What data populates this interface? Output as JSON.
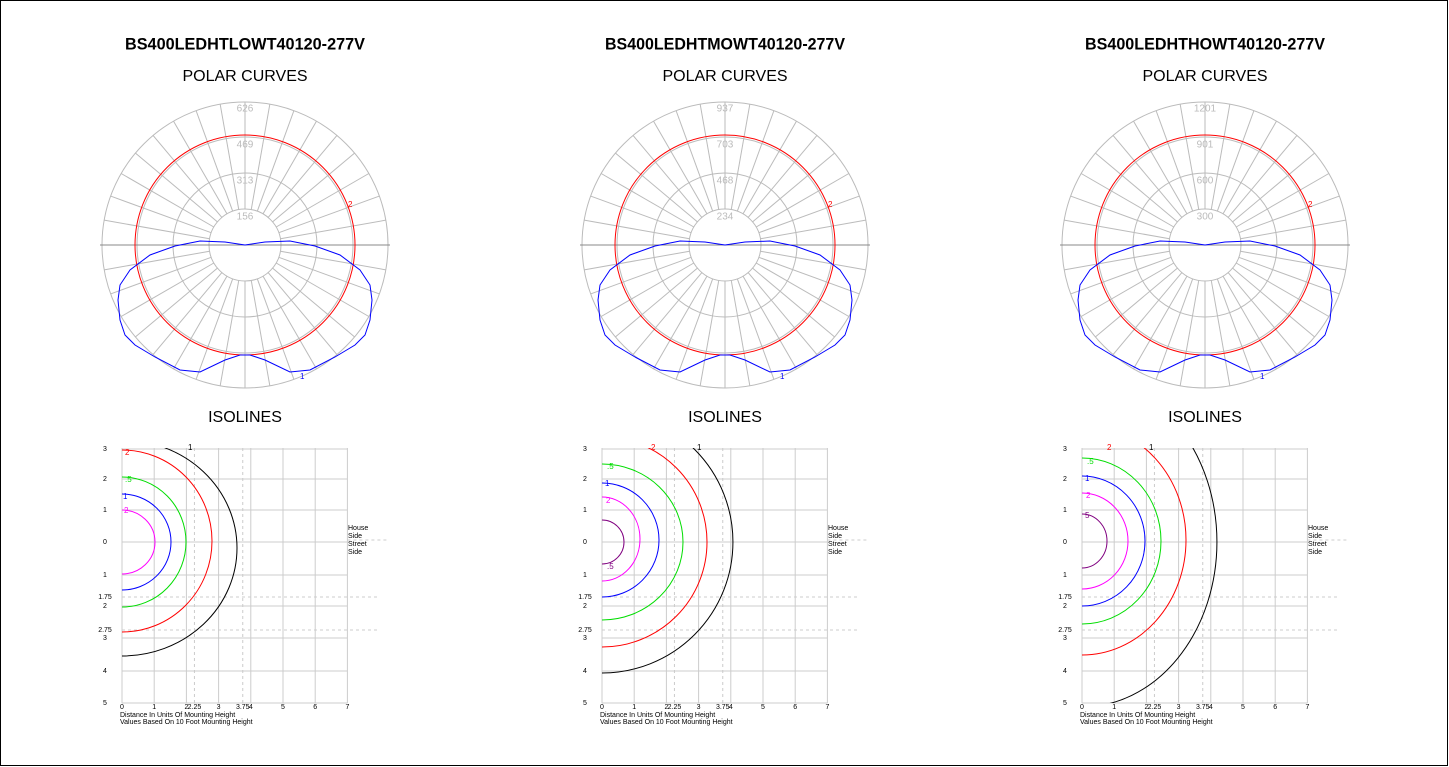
{
  "panels": [
    {
      "title": "BS400LEDHTLOWT40120-277V",
      "polar_heading": "POLAR CURVES",
      "ring_labels": [
        "626",
        "469",
        "313",
        "156"
      ],
      "curve_labels": [
        "2",
        "1"
      ],
      "isolines_heading": "ISOLINES",
      "isolines": [
        {
          "label": "1",
          "color": "#000000"
        },
        {
          "label": "2",
          "color": "#ff0000"
        },
        {
          "label": ".5",
          "color": "#00dd00"
        },
        {
          "label": "1",
          "color": "#0000ff"
        },
        {
          "label": "2",
          "color": "#ff00ff"
        }
      ]
    },
    {
      "title": "BS400LEDHTMOWT40120-277V",
      "polar_heading": "POLAR CURVES",
      "ring_labels": [
        "937",
        "703",
        "468",
        "234"
      ],
      "curve_labels": [
        "2",
        "1"
      ],
      "isolines_heading": "ISOLINES",
      "isolines": [
        {
          "label": "1",
          "color": "#000000"
        },
        {
          "label": "2",
          "color": "#ff0000"
        },
        {
          "label": ".5",
          "color": "#00dd00"
        },
        {
          "label": "1",
          "color": "#0000ff"
        },
        {
          "label": "2",
          "color": "#ff00ff"
        },
        {
          "label": ".5",
          "color": "#800080"
        }
      ]
    },
    {
      "title": "BS400LEDHTHOWT40120-277V",
      "polar_heading": "POLAR CURVES",
      "ring_labels": [
        "1201",
        "901",
        "600",
        "300"
      ],
      "curve_labels": [
        "2",
        "1"
      ],
      "isolines_heading": "ISOLINES",
      "isolines": [
        {
          "label": "1",
          "color": "#000000"
        },
        {
          "label": "2",
          "color": "#ff0000"
        },
        {
          "label": ".5",
          "color": "#00dd00"
        },
        {
          "label": "1",
          "color": "#0000ff"
        },
        {
          "label": "2",
          "color": "#ff00ff"
        },
        {
          "label": "5",
          "color": "#800080"
        }
      ]
    }
  ],
  "y_labels": [
    "3",
    "2",
    "1",
    "0",
    "1",
    "1.75",
    "2",
    "2.75",
    "3",
    "4",
    "5"
  ],
  "x_labels": [
    "0",
    "1",
    "2",
    "2.25",
    "3",
    "3.75",
    "4",
    "5",
    "6",
    "7"
  ],
  "side_labels": [
    "House",
    "Side",
    "Street",
    "Side"
  ],
  "notes": [
    "Distance In Units Of Mounting Height",
    "Values Based On 10 Foot Mounting Height"
  ]
}
